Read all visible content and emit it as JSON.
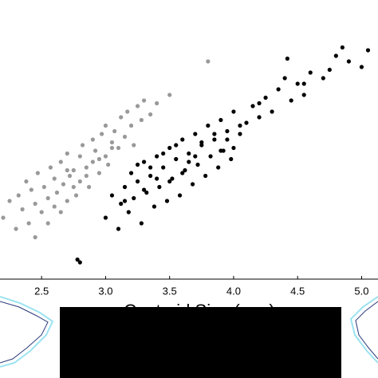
{
  "chart_data": {
    "type": "scatter",
    "xlabel": "Centroid Size (mm)",
    "xlim": [
      2.175,
      5.128
    ],
    "xticks": [
      2.5,
      {
        "value": 3,
        "label": "3.0"
      },
      3.5,
      {
        "value": 4,
        "label": "4.0"
      },
      4.5,
      {
        "value": 5,
        "label": "5.0"
      }
    ],
    "ylim": [
      0,
      100
    ],
    "series": [
      {
        "color": "#999999",
        "x": [
          2.2,
          2.25,
          2.3,
          2.32,
          2.35,
          2.38,
          2.4,
          2.42,
          2.45,
          2.47,
          2.5,
          2.52,
          2.55,
          2.57,
          2.6,
          2.6,
          2.62,
          2.65,
          2.67,
          2.7,
          2.7,
          2.72,
          2.75,
          2.77,
          2.8,
          2.8,
          2.82,
          2.85,
          2.87,
          2.9,
          2.9,
          2.92,
          2.95,
          2.97,
          3.0,
          3.0,
          3.02,
          3.05,
          3.07,
          3.1,
          3.12,
          3.15,
          3.17,
          3.2,
          3.22,
          3.25,
          3.28,
          3.3,
          3.35,
          3.4,
          2.65,
          2.75,
          2.85,
          2.95,
          3.05,
          2.55,
          2.45,
          2.7,
          3.5,
          3.8
        ],
        "values": [
          22,
          28,
          18,
          30,
          25,
          35,
          20,
          32,
          27,
          38,
          24,
          33,
          29,
          40,
          26,
          36,
          31,
          42,
          34,
          28,
          45,
          37,
          39,
          30,
          44,
          35,
          48,
          40,
          33,
          50,
          42,
          46,
          38,
          52,
          44,
          55,
          41,
          49,
          53,
          47,
          58,
          51,
          60,
          55,
          48,
          62,
          57,
          64,
          59,
          63,
          24,
          33,
          37,
          43,
          47,
          20,
          15,
          39,
          66,
          78
        ]
      },
      {
        "color": "#000000",
        "x": [
          2.8,
          2.78,
          3.0,
          3.05,
          3.1,
          3.12,
          3.15,
          3.18,
          3.2,
          3.22,
          3.25,
          3.28,
          3.3,
          3.32,
          3.35,
          3.38,
          3.4,
          3.42,
          3.45,
          3.48,
          3.5,
          3.52,
          3.55,
          3.58,
          3.6,
          3.62,
          3.65,
          3.68,
          3.7,
          3.72,
          3.75,
          3.78,
          3.8,
          3.82,
          3.85,
          3.88,
          3.9,
          3.92,
          3.95,
          3.98,
          4.0,
          4.05,
          4.1,
          4.15,
          4.2,
          4.25,
          4.3,
          4.35,
          4.4,
          4.45,
          4.5,
          4.55,
          4.6,
          4.7,
          4.8,
          4.9,
          5.0,
          5.05,
          4.85,
          4.42,
          3.3,
          3.45,
          3.6,
          3.75,
          3.9,
          4.05,
          3.25,
          3.4,
          3.55,
          3.7,
          3.85,
          4.0,
          3.15,
          3.35,
          3.5,
          3.65,
          4.2,
          4.55,
          4.75,
          3.95
        ],
        "values": [
          6,
          7,
          22,
          30,
          18,
          27,
          33,
          24,
          38,
          29,
          35,
          20,
          42,
          31,
          37,
          26,
          44,
          33,
          40,
          28,
          47,
          36,
          43,
          30,
          50,
          39,
          45,
          34,
          52,
          41,
          48,
          37,
          55,
          44,
          50,
          40,
          57,
          46,
          53,
          43,
          60,
          52,
          56,
          62,
          58,
          65,
          60,
          68,
          72,
          64,
          70,
          66,
          74,
          72,
          80,
          78,
          76,
          82,
          83,
          79,
          32,
          45,
          38,
          49,
          46,
          55,
          41,
          36,
          48,
          44,
          52,
          47,
          28,
          40,
          35,
          42,
          63,
          70,
          75,
          50
        ]
      }
    ]
  }
}
